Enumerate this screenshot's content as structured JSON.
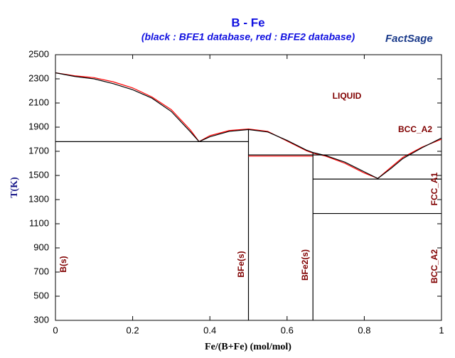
{
  "chart_data": {
    "type": "line",
    "title": "B - Fe",
    "subtitle": "(black : BFE1 database, red : BFE2 database)",
    "logo": "FactSage",
    "x_label": "Fe/(B+Fe) (mol/mol)",
    "y_label": "T(K)",
    "xlim": [
      0,
      1
    ],
    "ylim": [
      300,
      2500
    ],
    "xticks": [
      0,
      0.2,
      0.4,
      0.6,
      0.8,
      1
    ],
    "yticks": [
      300,
      500,
      700,
      900,
      1100,
      1300,
      1500,
      1700,
      1900,
      2100,
      2300,
      2500
    ],
    "annotations": [
      "LIQUID",
      "BCC_A2",
      "FCC_A1",
      "BCC_A2",
      "B(s)",
      "BFe(s)",
      "BFe2(s)"
    ],
    "series": [
      {
        "color": "#ff0000",
        "x": [
          0,
          0.05,
          0.1,
          0.15,
          0.2,
          0.25,
          0.3,
          0.35,
          0.372
        ],
        "values": [
          2350,
          2325,
          2310,
          2275,
          2225,
          2150,
          2045,
          1875,
          1780
        ]
      },
      {
        "color": "#ff0000",
        "x": [
          0.372,
          0.4,
          0.45,
          0.5,
          0.55,
          0.6,
          0.65,
          0.667,
          0.7,
          0.75,
          0.8,
          0.835
        ],
        "values": [
          1780,
          1830,
          1872,
          1885,
          1865,
          1785,
          1705,
          1685,
          1660,
          1600,
          1520,
          1475
        ]
      },
      {
        "color": "#ff0000",
        "x": [
          0.835,
          0.87,
          0.9,
          0.95,
          1
        ],
        "values": [
          1475,
          1570,
          1650,
          1735,
          1800
        ]
      },
      {
        "color": "#000000",
        "x": [
          0,
          0.05,
          0.1,
          0.15,
          0.2,
          0.25,
          0.3,
          0.35,
          0.372
        ],
        "values": [
          2350,
          2320,
          2300,
          2260,
          2210,
          2140,
          2030,
          1860,
          1780
        ]
      },
      {
        "color": "#000000",
        "x": [
          0.372,
          0.4,
          0.45,
          0.5,
          0.55,
          0.6,
          0.65,
          0.667,
          0.7,
          0.75,
          0.8,
          0.835
        ],
        "values": [
          1780,
          1820,
          1865,
          1880,
          1860,
          1790,
          1710,
          1690,
          1665,
          1610,
          1530,
          1475
        ]
      },
      {
        "color": "#000000",
        "x": [
          0.835,
          0.87,
          0.9,
          0.95,
          1
        ],
        "values": [
          1475,
          1560,
          1640,
          1730,
          1810
        ]
      },
      {
        "color": "#000000",
        "x": [
          0,
          0.5
        ],
        "values": [
          1780,
          1780
        ]
      },
      {
        "color": "#000000",
        "x": [
          0.5,
          0.5
        ],
        "values": [
          1880,
          300
        ]
      },
      {
        "color": "#000000",
        "x": [
          0.5,
          0.667
        ],
        "values": [
          1670,
          1670
        ]
      },
      {
        "color": "#ff0000",
        "x": [
          0.5,
          0.667
        ],
        "values": [
          1660,
          1660
        ]
      },
      {
        "color": "#000000",
        "x": [
          0.667,
          0.667
        ],
        "values": [
          1690,
          300
        ]
      },
      {
        "color": "#000000",
        "x": [
          0.667,
          1
        ],
        "values": [
          1670,
          1670
        ]
      },
      {
        "color": "#000000",
        "x": [
          0.667,
          1
        ],
        "values": [
          1470,
          1470
        ]
      },
      {
        "color": "#000000",
        "x": [
          0.667,
          1
        ],
        "values": [
          1185,
          1185
        ]
      }
    ]
  }
}
